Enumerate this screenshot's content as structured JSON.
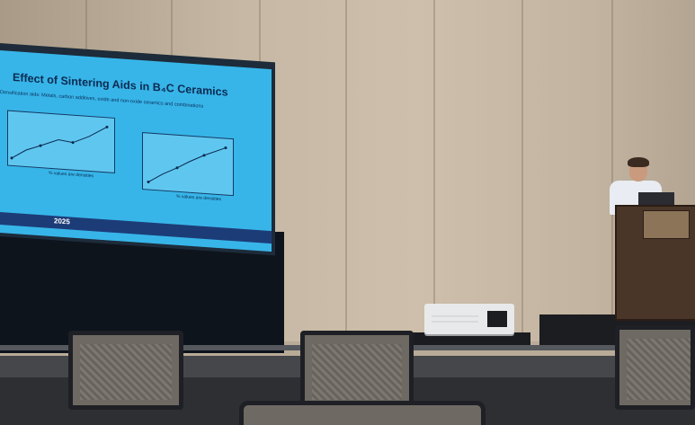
{
  "slide": {
    "title": "Effect of Sintering Aids in B₄C Ceramics",
    "subtitle": "Densification aids: Metals, carbon additives, oxide and non-oxide ceramics and combinations",
    "plot_left_note": "% values are densities",
    "plot_right_note": "% values are densities",
    "footer_year": "2025"
  },
  "colors": {
    "slide_background": "#37b5e8",
    "slide_title": "#0c2a52",
    "podium_wood": "#4a3628",
    "shirt": "#e9ecf2"
  }
}
